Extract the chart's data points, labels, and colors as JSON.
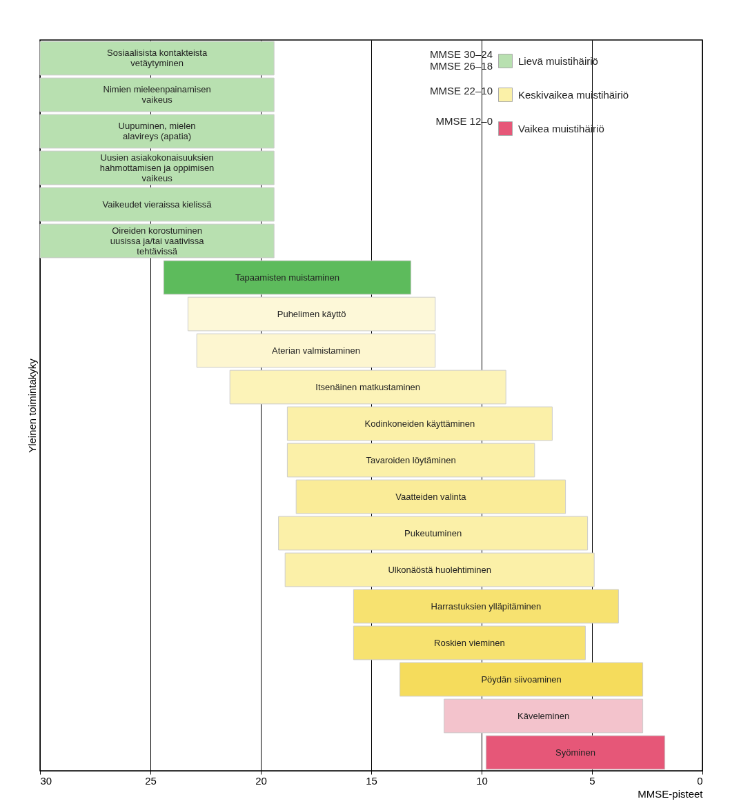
{
  "chart_data": {
    "type": "bar",
    "orientation": "horizontal",
    "xlabel": "MMSE-pisteet",
    "ylabel": "Yleinen toimintakyky",
    "categories": [
      "Sosiaalisista kontakteista\nvetäytyminen",
      "Nimien mieleenpainamisen\nvaikeus",
      "Uupuminen, mielen\nalavireys (apatia)",
      "Uusien asiakokonaisuuksien\nhahmottamisen ja oppimisen\nvaikeus",
      "Vaikeudet vieraissa kielissä",
      "Oireiden korostuminen\nuusissa ja/tai vaativissa\ntehtävissä",
      "Tapaamisten muistaminen",
      "Puhelimen käyttö",
      "Aterian valmistaminen",
      "Itsenäinen matkustaminen",
      "Kodinkoneiden käyttäminen",
      "Tavaroiden löytäminen",
      "Vaatteiden valinta",
      "Pukeutuminen",
      "Ulkonäöstä huolehtiminen",
      "Harrastuksien ylläpitäminen",
      "Roskien vieminen",
      "Pöydän siivoaminen",
      "Käveleminen",
      "Syöminen"
    ],
    "series": [
      {
        "name": "Lievä muistihäiriö",
        "color": "#b8e0b0",
        "colors": [
          "#b8e0b0",
          "#b8e0b0",
          "#b8e0b0",
          "#b8e0b0",
          "#b8e0b0",
          "#b8e0b0",
          "#5dbb5c",
          null,
          null,
          null,
          null,
          null,
          null,
          null,
          null,
          null,
          null,
          null,
          null,
          null
        ],
        "base": [
          19.4,
          19.4,
          19.4,
          19.4,
          19.4,
          19.4,
          13.2,
          null,
          null,
          null,
          null,
          null,
          null,
          null,
          null,
          null,
          null,
          null,
          null,
          null
        ],
        "values": [
          10.6,
          10.6,
          10.6,
          10.6,
          10.6,
          10.6,
          11.2,
          null,
          null,
          null,
          null,
          null,
          null,
          null,
          null,
          null,
          null,
          null,
          null,
          null
        ]
      },
      {
        "name": "Keskivaikea muistihäiriö",
        "color": "#fbf1a8",
        "colors": [
          null,
          null,
          null,
          null,
          null,
          null,
          null,
          "#fdf8d8",
          "#fdf6d0",
          "#fcf3b8",
          "#fbf0a8",
          "#fbf0a8",
          "#faec98",
          "#fbf0a8",
          "#fbf0a8",
          "#f7e270",
          "#f7e270",
          "#f5dc5c",
          null,
          null
        ],
        "base": [
          null,
          null,
          null,
          null,
          null,
          null,
          null,
          12.1,
          12.1,
          8.9,
          6.8,
          7.6,
          6.2,
          5.2,
          4.9,
          3.8,
          5.3,
          2.7,
          null,
          null
        ],
        "values": [
          null,
          null,
          null,
          null,
          null,
          null,
          null,
          11.2,
          10.8,
          12.5,
          12.0,
          11.2,
          12.2,
          14.0,
          14.0,
          12.0,
          10.5,
          11.0,
          null,
          null
        ]
      },
      {
        "name": "Vaikea muistihäiriö",
        "color": "#e65778",
        "colors": [
          null,
          null,
          null,
          null,
          null,
          null,
          null,
          null,
          null,
          null,
          null,
          null,
          null,
          null,
          null,
          null,
          null,
          null,
          "#f3c3cc",
          "#e65778"
        ],
        "base": [
          null,
          null,
          null,
          null,
          null,
          null,
          null,
          null,
          null,
          null,
          null,
          null,
          null,
          null,
          null,
          null,
          null,
          null,
          2.7,
          1.7
        ],
        "values": [
          null,
          null,
          null,
          null,
          null,
          null,
          null,
          null,
          null,
          null,
          null,
          null,
          null,
          null,
          null,
          null,
          null,
          null,
          9.0,
          8.1
        ]
      }
    ],
    "annotations": [
      "MMSE 30–24\nMMSE 26–18",
      "MMSE 22–10",
      "MMSE 12–0"
    ],
    "xlim": [
      30,
      0
    ],
    "xticks": [
      30,
      25,
      20,
      15,
      10,
      5,
      0
    ],
    "grid": "x",
    "tick_labels": "x",
    "legend": "top right"
  }
}
